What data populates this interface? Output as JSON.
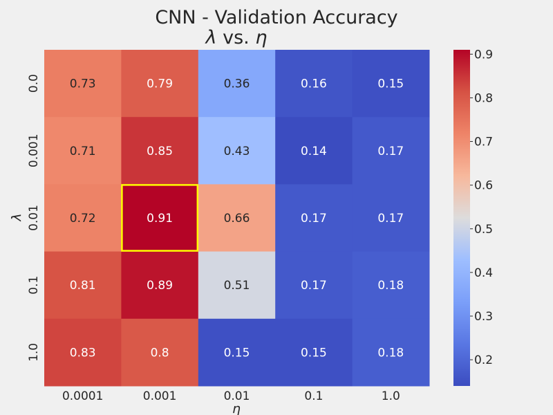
{
  "chart_data": {
    "type": "heatmap",
    "title_line1": "CNN      -      Validation Accuracy",
    "title_line2_symbol_a": "λ",
    "title_line2_mid": " vs. ",
    "title_line2_symbol_b": "η",
    "xlabel": "η",
    "ylabel": "λ",
    "x_categories": [
      "0.0001",
      "0.001",
      "0.01",
      "0.1",
      "1.0"
    ],
    "y_categories": [
      "0.0",
      "0.001",
      "0.01",
      "0.1",
      "1.0"
    ],
    "values": [
      [
        0.73,
        0.79,
        0.36,
        0.16,
        0.15
      ],
      [
        0.71,
        0.85,
        0.43,
        0.14,
        0.17
      ],
      [
        0.72,
        0.91,
        0.66,
        0.17,
        0.17
      ],
      [
        0.81,
        0.89,
        0.51,
        0.17,
        0.18
      ],
      [
        0.83,
        0.8,
        0.15,
        0.15,
        0.18
      ]
    ],
    "cell_labels": [
      [
        "0.73",
        "0.79",
        "0.36",
        "0.16",
        "0.15"
      ],
      [
        "0.71",
        "0.85",
        "0.43",
        "0.14",
        "0.17"
      ],
      [
        "0.72",
        "0.91",
        "0.66",
        "0.17",
        "0.17"
      ],
      [
        "0.81",
        "0.89",
        "0.51",
        "0.17",
        "0.18"
      ],
      [
        "0.83",
        "0.8",
        "0.15",
        "0.15",
        "0.18"
      ]
    ],
    "colormap": "coolwarm",
    "vmin": 0.14,
    "vmax": 0.91,
    "colorbar_ticks": [
      "0.2",
      "0.3",
      "0.4",
      "0.5",
      "0.6",
      "0.7",
      "0.8",
      "0.9"
    ],
    "highlight": {
      "row": 2,
      "col": 1,
      "color": "#ffff00"
    }
  }
}
